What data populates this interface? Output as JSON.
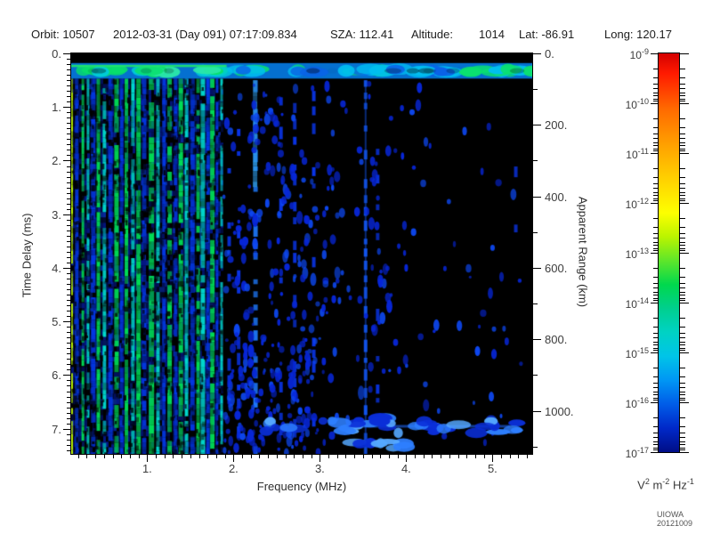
{
  "header": {
    "orbit_label": "Orbit:",
    "orbit": "10507",
    "datetime": "2012-03-31 (Day 091) 07:17:09.834",
    "sza_label": "SZA:",
    "sza": "112.41",
    "altitude_label": "Altitude:",
    "altitude": "1014",
    "lat_label": "Lat:",
    "lat": "-86.91",
    "long_label": "Long:",
    "long": "120.17"
  },
  "footer": {
    "credit": "UIOWA 20121009"
  },
  "chart_data": {
    "type": "heatmap",
    "xlabel": "Frequency (MHz)",
    "ylabel_left": "Time Delay (ms)",
    "ylabel_right": "Apparent Range (km)",
    "x_axis": {
      "min": 0.12,
      "max": 5.46,
      "major_ticks": [
        1,
        2,
        3,
        4,
        5
      ],
      "major_labels": [
        "1.",
        "2.",
        "3.",
        "4.",
        "5."
      ],
      "minor_step": 0.1
    },
    "y_axis": {
      "min": 0,
      "max": 7.47,
      "major_ticks": [
        0,
        1,
        2,
        3,
        4,
        5,
        6,
        7
      ],
      "major_labels": [
        "0.",
        "1.",
        "2.",
        "3.",
        "4.",
        "5.",
        "6.",
        "7."
      ],
      "minor_step": 0.1
    },
    "right_axis": {
      "min": 0,
      "max": 1120,
      "km_per_ms": 150,
      "major_step": 200,
      "minor_step": 100,
      "major_labels": [
        "0.",
        "200.",
        "400.",
        "600.",
        "800.",
        "1000."
      ]
    },
    "colorbar": {
      "tick_exponents": [
        -9,
        -10,
        -11,
        -12,
        -13,
        -14,
        -15,
        -16,
        -17
      ],
      "units": {
        "base1": "V",
        "exp1": "2",
        "base2": "m",
        "exp2": "-2",
        "base3": "Hz",
        "exp3": "-1"
      },
      "stops": [
        {
          "p": 0,
          "c": "#d40000"
        },
        {
          "p": 5,
          "c": "#ff1a00"
        },
        {
          "p": 14,
          "c": "#ff6a00"
        },
        {
          "p": 24,
          "c": "#ffa700"
        },
        {
          "p": 33,
          "c": "#ffd900"
        },
        {
          "p": 40,
          "c": "#fdff00"
        },
        {
          "p": 46,
          "c": "#baf400"
        },
        {
          "p": 52,
          "c": "#5ee62a"
        },
        {
          "p": 58,
          "c": "#00d84d"
        },
        {
          "p": 64,
          "c": "#00cf8e"
        },
        {
          "p": 70,
          "c": "#00d2c4"
        },
        {
          "p": 76,
          "c": "#00c4e8"
        },
        {
          "p": 82,
          "c": "#0096f4"
        },
        {
          "p": 88,
          "c": "#005ce8"
        },
        {
          "p": 94,
          "c": "#0028c8"
        },
        {
          "p": 100,
          "c": "#000e86"
        }
      ]
    },
    "features": {
      "seed": 42,
      "background": "#000000",
      "palette": {
        "y": "#B8F000",
        "g": "#00DC55",
        "c": "#00D8CC",
        "b": "#0238E6"
      },
      "noise": {
        "fmax": 1.88,
        "col_step": 3,
        "row_step": 6,
        "color": "#0420C0",
        "color2": "#0a3ae0",
        "speckle_count": 700,
        "speckle_color": "#000000"
      },
      "plasma_stripes": [
        {
          "f": 0.125,
          "w": 3,
          "c": "y"
        },
        {
          "f": 0.185,
          "w": 4,
          "c": "b"
        },
        {
          "f": 0.255,
          "w": 3,
          "c": "g"
        },
        {
          "f": 0.315,
          "w": 3,
          "c": "c"
        },
        {
          "f": 0.375,
          "w": 5,
          "c": "b"
        },
        {
          "f": 0.435,
          "w": 4,
          "c": "g"
        },
        {
          "f": 0.505,
          "w": 4,
          "c": "c"
        },
        {
          "f": 0.575,
          "w": 5,
          "c": "b"
        },
        {
          "f": 0.645,
          "w": 5,
          "c": "g"
        },
        {
          "f": 0.705,
          "w": 4,
          "c": "b"
        },
        {
          "f": 0.76,
          "w": 4,
          "c": "g"
        },
        {
          "f": 0.835,
          "w": 4,
          "c": "c"
        },
        {
          "f": 0.9,
          "w": 5,
          "c": "g"
        },
        {
          "f": 0.965,
          "w": 5,
          "c": "b"
        },
        {
          "f": 1.05,
          "w": 6,
          "c": "g"
        },
        {
          "f": 1.125,
          "w": 4,
          "c": "c"
        },
        {
          "f": 1.195,
          "w": 4,
          "c": "b"
        },
        {
          "f": 1.26,
          "w": 5,
          "c": "g"
        },
        {
          "f": 1.33,
          "w": 4,
          "c": "b"
        },
        {
          "f": 1.39,
          "w": 5,
          "c": "g"
        },
        {
          "f": 1.455,
          "w": 4,
          "c": "c"
        },
        {
          "f": 1.525,
          "w": 5,
          "c": "b"
        },
        {
          "f": 1.59,
          "w": 4,
          "c": "g"
        },
        {
          "f": 1.645,
          "w": 5,
          "c": "c"
        },
        {
          "f": 1.705,
          "w": 4,
          "c": "b"
        },
        {
          "f": 1.755,
          "w": 5,
          "c": "g"
        },
        {
          "f": 1.81,
          "w": 3,
          "c": "b"
        },
        {
          "f": 1.862,
          "w": 3,
          "c": "c"
        }
      ],
      "top_band": {
        "delay0": 0.18,
        "delay1": 0.47,
        "base_color": "#0570D0",
        "blob_count": 64,
        "left_fmax": 1.9,
        "blob_colors_left": [
          "#08E06A",
          "#2BE8A8",
          "#00CCD8"
        ],
        "blob_colors_right": [
          "#00BEF0",
          "#0A62E8",
          "#0AE070"
        ],
        "green_line_color": "#22E868",
        "green_line_fmax": 1.92
      },
      "dotted_columns": [
        {
          "f": 1.95,
          "d0": 0.6,
          "d1": 7.3,
          "density": 0.3,
          "c": "#0934E8"
        },
        {
          "f": 2.06,
          "d0": 0.55,
          "d1": 7.4,
          "density": 0.45,
          "c": "#0934E8"
        },
        {
          "f": 2.25,
          "d0": 0.5,
          "d1": 7.45,
          "density": 0.75,
          "c": "#1E7BFF",
          "bright": true
        },
        {
          "f": 2.55,
          "d0": 0.6,
          "d1": 7.4,
          "density": 0.55,
          "c": "#0934E8"
        },
        {
          "f": 2.71,
          "d0": 0.6,
          "d1": 7.45,
          "density": 0.5,
          "c": "#0934E8"
        },
        {
          "f": 2.93,
          "d0": 0.7,
          "d1": 7.3,
          "density": 0.35,
          "c": "#0934E8"
        },
        {
          "f": 3.53,
          "d0": 0.5,
          "d1": 7.47,
          "density": 0.85,
          "c": "#1255F0",
          "line": true
        },
        {
          "f": 3.67,
          "d0": 0.8,
          "d1": 7.2,
          "density": 0.4,
          "c": "#0934E8"
        },
        {
          "f": 5.27,
          "d0": 0.8,
          "d1": 7.0,
          "density": 0.2,
          "c": "#0A2ECC"
        }
      ],
      "scatter_regions": [
        {
          "f0": 1.88,
          "f1": 3.15,
          "d0": 0.5,
          "d1": 7.45,
          "count": 230
        },
        {
          "f0": 3.15,
          "f1": 4.1,
          "d0": 0.5,
          "d1": 7.45,
          "count": 70
        },
        {
          "f0": 4.1,
          "f1": 5.35,
          "d0": 0.5,
          "d1": 7.3,
          "count": 40
        },
        {
          "f0": 1.9,
          "f1": 2.9,
          "d0": 5.2,
          "d1": 7.45,
          "count": 90
        }
      ],
      "scatter_colors": [
        "#0726D8",
        "#0D47F0"
      ],
      "surface_band": {
        "f0": 3.3,
        "f1": 5.3,
        "delay": 6.95,
        "spread": 0.15,
        "count": 36,
        "colors": [
          "#0A2ED8",
          "#2E7FFF",
          "#55A8FF"
        ],
        "line": {
          "f0": 3.5,
          "f1": 5.2,
          "delay": 6.93,
          "color": "#1E63F0"
        },
        "sub_blobs": {
          "f0": 3.4,
          "f1": 4.05,
          "delay": 7.3,
          "count": 9
        },
        "left_sparse": {
          "f0": 2.25,
          "f1": 3.3,
          "delay": 6.95,
          "count": 10
        }
      }
    }
  }
}
